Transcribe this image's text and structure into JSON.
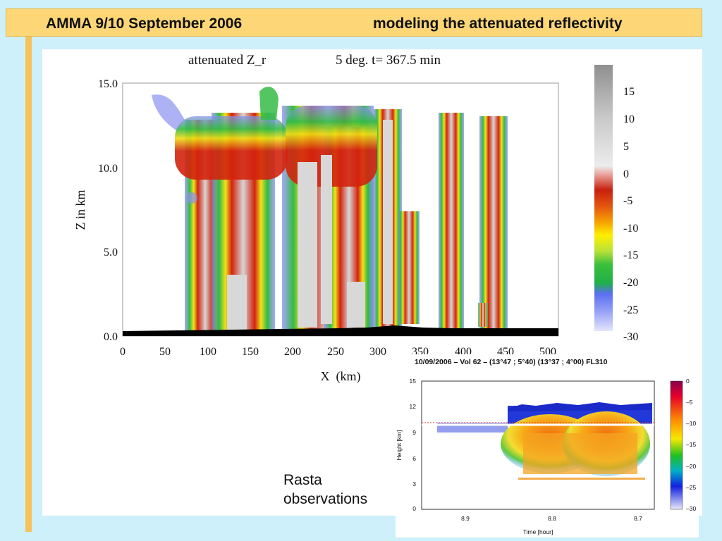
{
  "slide": {
    "title_left": "AMMA 9/10 September 2006",
    "title_right": "modeling the attenuated reflectivity",
    "colors": {
      "background": "#cdf0fb",
      "title_bar": "#fcd677",
      "accent_bar": "#f6c25c"
    }
  },
  "simulation_plot": {
    "title_a": "attenuated Z_r",
    "title_b": "5 deg. t= 367.5 min",
    "ylabel": "Z in km",
    "xlabel": "X  (km)",
    "y_ticks": [
      "0.0",
      "5.0",
      "10.0",
      "15.0"
    ],
    "x_ticks": [
      "0",
      "50",
      "100",
      "150",
      "200",
      "250",
      "300",
      "350",
      "400",
      "450",
      "500"
    ],
    "colorbar_ticks": [
      "15",
      "10",
      "5",
      "0",
      "-5",
      "-10",
      "-15",
      "-20",
      "-25",
      "-30"
    ]
  },
  "observation_plot": {
    "title": "10/09/2006 – Vol 62 – (13°47 ; 5°40) (13°37 ; 4°00) FL310",
    "ylabel": "Height [km]",
    "xlabel": "Time [hour]",
    "y_ticks": [
      "0",
      "3",
      "6",
      "9",
      "12",
      "15"
    ],
    "x_ticks": [
      "8.9",
      "8.8",
      "8.7"
    ],
    "colorbar_ticks": [
      "0",
      "–5",
      "–10",
      "–15",
      "–20",
      "–25",
      "–30"
    ]
  },
  "annotation": {
    "line1": "Rasta",
    "line2": "observations"
  }
}
